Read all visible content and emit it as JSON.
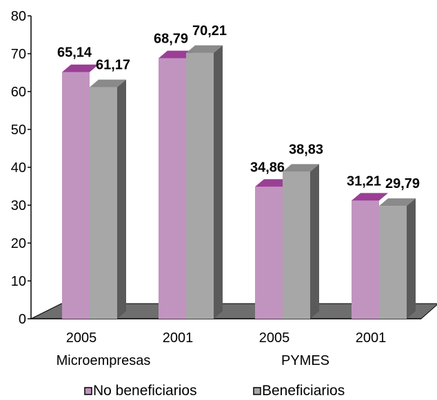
{
  "chart_data": {
    "type": "bar",
    "categories": [
      "2005",
      "2001",
      "2005",
      "2001"
    ],
    "groups": [
      {
        "label": "Microempresas",
        "categories": [
          "2005",
          "2001"
        ]
      },
      {
        "label": "PYMES",
        "categories": [
          "2005",
          "2001"
        ]
      }
    ],
    "series": [
      {
        "name": "No beneficiarios",
        "values": [
          65.14,
          68.79,
          34.86,
          31.21
        ],
        "labels": [
          "65,14",
          "68,79",
          "34,86",
          "31,21"
        ],
        "color": "#c194c0",
        "top_color": "#9a3f95"
      },
      {
        "name": "Beneficiarios",
        "values": [
          61.17,
          70.21,
          38.83,
          29.79
        ],
        "labels": [
          "61,17",
          "70,21",
          "38,83",
          "29,79"
        ],
        "color": "#a7a7a7",
        "top_color": "#8a8a8a"
      }
    ],
    "ylim": [
      0,
      80
    ],
    "yticks": [
      "0",
      "10",
      "20",
      "30",
      "40",
      "50",
      "60",
      "70",
      "80"
    ],
    "style": "3d-clustered",
    "grid": false,
    "legend_position": "bottom"
  }
}
